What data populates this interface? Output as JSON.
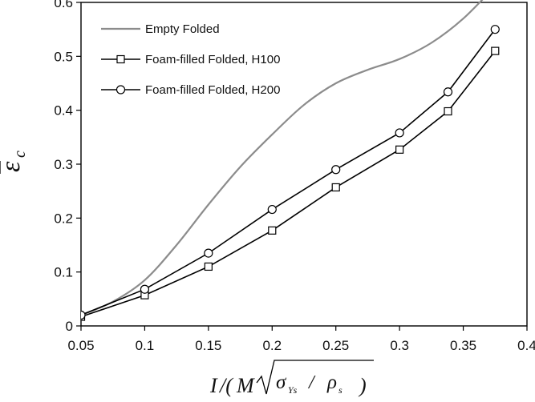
{
  "chart_data": {
    "type": "line",
    "title": "",
    "xlabel": "I/(M√(σ_Ys/ρ_s))",
    "ylabel": "ε̄_c",
    "xlim": [
      0.05,
      0.4
    ],
    "ylim": [
      0,
      0.6
    ],
    "x_ticks": [
      "0.05",
      "0.1",
      "0.15",
      "0.2",
      "0.25",
      "0.3",
      "0.35",
      "0.4"
    ],
    "y_ticks": [
      "0",
      "0.1",
      "0.2",
      "0.3",
      "0.4",
      "0.5",
      "0.6"
    ],
    "grid": false,
    "legend_position": "top-left",
    "series": [
      {
        "name": "Empty Folded",
        "style": "gray-line",
        "color": "#8c8c8c",
        "x": [
          0.05,
          0.075,
          0.1,
          0.125,
          0.15,
          0.175,
          0.2,
          0.225,
          0.25,
          0.275,
          0.3,
          0.325,
          0.35,
          0.375
        ],
        "y": [
          0.02,
          0.045,
          0.085,
          0.15,
          0.225,
          0.295,
          0.355,
          0.41,
          0.45,
          0.475,
          0.495,
          0.525,
          0.57,
          0.63
        ]
      },
      {
        "name": "Foam-filled Folded, H100",
        "style": "square-markers",
        "color": "#000000",
        "x": [
          0.05,
          0.1,
          0.15,
          0.2,
          0.25,
          0.3,
          0.338,
          0.375
        ],
        "y": [
          0.017,
          0.057,
          0.11,
          0.177,
          0.257,
          0.327,
          0.398,
          0.51
        ]
      },
      {
        "name": "Foam-filled Folded, H200",
        "style": "circle-markers",
        "color": "#000000",
        "x": [
          0.05,
          0.1,
          0.15,
          0.2,
          0.25,
          0.3,
          0.338,
          0.375
        ],
        "y": [
          0.02,
          0.068,
          0.135,
          0.216,
          0.29,
          0.358,
          0.434,
          0.55
        ]
      }
    ]
  }
}
